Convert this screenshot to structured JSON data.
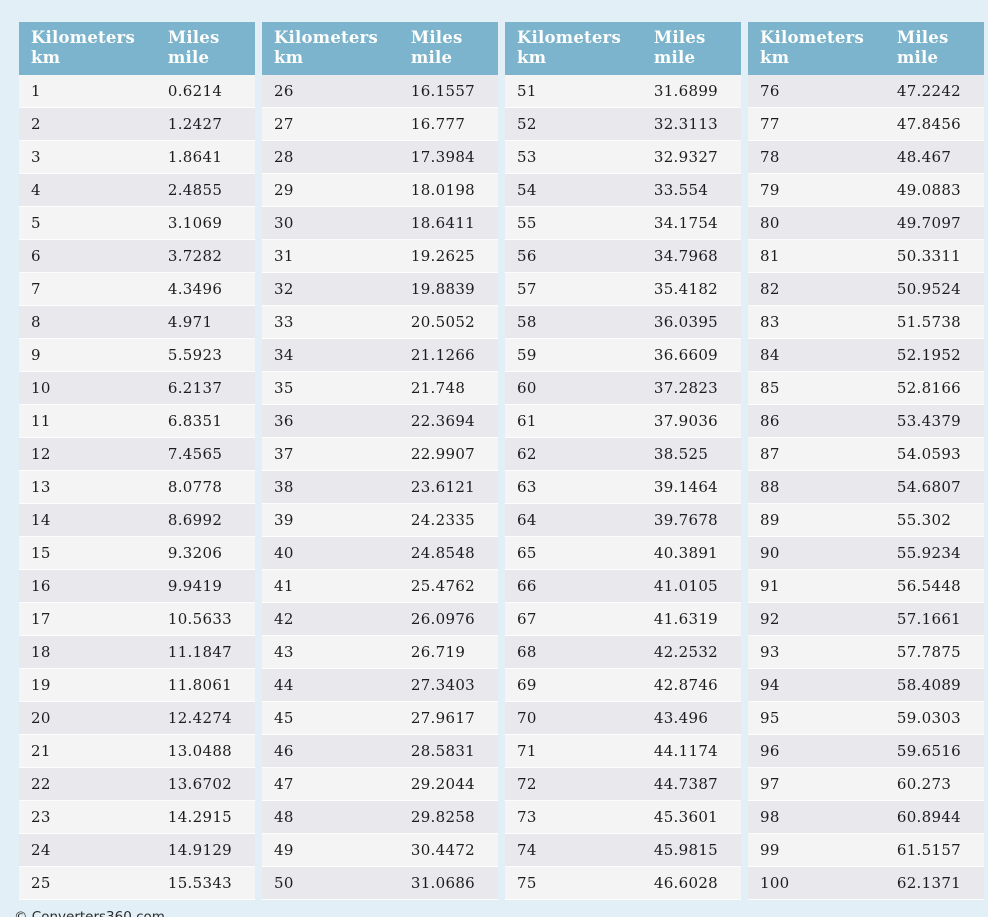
{
  "page": {
    "background_color": "#e2eff6",
    "copyright": "© Converters360.com"
  },
  "theme": {
    "header_bg": "#7cb4cd",
    "header_text_color": "#fdfdfb",
    "row_odd_bg": "#f4f4f5",
    "row_even_bg": "#e8e8ed",
    "cell_text_color": "#1d1d1d"
  },
  "chart_data": {
    "type": "table",
    "columns": [
      "Kilometers km",
      "Miles mile"
    ],
    "header": {
      "col1_title": "Kilometers",
      "col1_unit": "km",
      "col2_title": "Miles",
      "col2_unit": "mile"
    },
    "panels": [
      {
        "rows": [
          [
            "1",
            "0.6214"
          ],
          [
            "2",
            "1.2427"
          ],
          [
            "3",
            "1.8641"
          ],
          [
            "4",
            "2.4855"
          ],
          [
            "5",
            "3.1069"
          ],
          [
            "6",
            "3.7282"
          ],
          [
            "7",
            "4.3496"
          ],
          [
            "8",
            "4.971"
          ],
          [
            "9",
            "5.5923"
          ],
          [
            "10",
            "6.2137"
          ],
          [
            "11",
            "6.8351"
          ],
          [
            "12",
            "7.4565"
          ],
          [
            "13",
            "8.0778"
          ],
          [
            "14",
            "8.6992"
          ],
          [
            "15",
            "9.3206"
          ],
          [
            "16",
            "9.9419"
          ],
          [
            "17",
            "10.5633"
          ],
          [
            "18",
            "11.1847"
          ],
          [
            "19",
            "11.8061"
          ],
          [
            "20",
            "12.4274"
          ],
          [
            "21",
            "13.0488"
          ],
          [
            "22",
            "13.6702"
          ],
          [
            "23",
            "14.2915"
          ],
          [
            "24",
            "14.9129"
          ],
          [
            "25",
            "15.5343"
          ]
        ]
      },
      {
        "rows": [
          [
            "26",
            "16.1557"
          ],
          [
            "27",
            "16.777"
          ],
          [
            "28",
            "17.3984"
          ],
          [
            "29",
            "18.0198"
          ],
          [
            "30",
            "18.6411"
          ],
          [
            "31",
            "19.2625"
          ],
          [
            "32",
            "19.8839"
          ],
          [
            "33",
            "20.5052"
          ],
          [
            "34",
            "21.1266"
          ],
          [
            "35",
            "21.748"
          ],
          [
            "36",
            "22.3694"
          ],
          [
            "37",
            "22.9907"
          ],
          [
            "38",
            "23.6121"
          ],
          [
            "39",
            "24.2335"
          ],
          [
            "40",
            "24.8548"
          ],
          [
            "41",
            "25.4762"
          ],
          [
            "42",
            "26.0976"
          ],
          [
            "43",
            "26.719"
          ],
          [
            "44",
            "27.3403"
          ],
          [
            "45",
            "27.9617"
          ],
          [
            "46",
            "28.5831"
          ],
          [
            "47",
            "29.2044"
          ],
          [
            "48",
            "29.8258"
          ],
          [
            "49",
            "30.4472"
          ],
          [
            "50",
            "31.0686"
          ]
        ]
      },
      {
        "rows": [
          [
            "51",
            "31.6899"
          ],
          [
            "52",
            "32.3113"
          ],
          [
            "53",
            "32.9327"
          ],
          [
            "54",
            "33.554"
          ],
          [
            "55",
            "34.1754"
          ],
          [
            "56",
            "34.7968"
          ],
          [
            "57",
            "35.4182"
          ],
          [
            "58",
            "36.0395"
          ],
          [
            "59",
            "36.6609"
          ],
          [
            "60",
            "37.2823"
          ],
          [
            "61",
            "37.9036"
          ],
          [
            "62",
            "38.525"
          ],
          [
            "63",
            "39.1464"
          ],
          [
            "64",
            "39.7678"
          ],
          [
            "65",
            "40.3891"
          ],
          [
            "66",
            "41.0105"
          ],
          [
            "67",
            "41.6319"
          ],
          [
            "68",
            "42.2532"
          ],
          [
            "69",
            "42.8746"
          ],
          [
            "70",
            "43.496"
          ],
          [
            "71",
            "44.1174"
          ],
          [
            "72",
            "44.7387"
          ],
          [
            "73",
            "45.3601"
          ],
          [
            "74",
            "45.9815"
          ],
          [
            "75",
            "46.6028"
          ]
        ]
      },
      {
        "rows": [
          [
            "76",
            "47.2242"
          ],
          [
            "77",
            "47.8456"
          ],
          [
            "78",
            "48.467"
          ],
          [
            "79",
            "49.0883"
          ],
          [
            "80",
            "49.7097"
          ],
          [
            "81",
            "50.3311"
          ],
          [
            "82",
            "50.9524"
          ],
          [
            "83",
            "51.5738"
          ],
          [
            "84",
            "52.1952"
          ],
          [
            "85",
            "52.8166"
          ],
          [
            "86",
            "53.4379"
          ],
          [
            "87",
            "54.0593"
          ],
          [
            "88",
            "54.6807"
          ],
          [
            "89",
            "55.302"
          ],
          [
            "90",
            "55.9234"
          ],
          [
            "91",
            "56.5448"
          ],
          [
            "92",
            "57.1661"
          ],
          [
            "93",
            "57.7875"
          ],
          [
            "94",
            "58.4089"
          ],
          [
            "95",
            "59.0303"
          ],
          [
            "96",
            "59.6516"
          ],
          [
            "97",
            "60.273"
          ],
          [
            "98",
            "60.8944"
          ],
          [
            "99",
            "61.5157"
          ],
          [
            "100",
            "62.1371"
          ]
        ]
      }
    ]
  }
}
